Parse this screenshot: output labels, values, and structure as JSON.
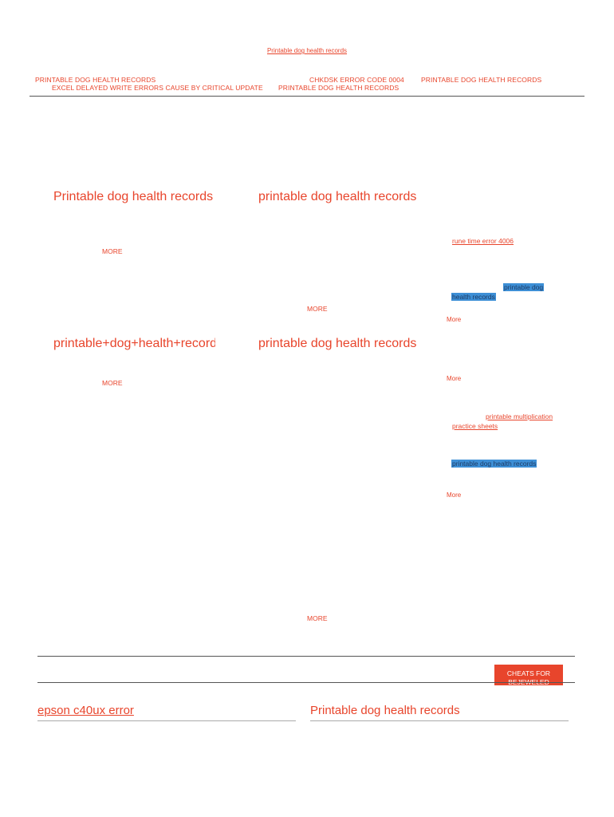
{
  "header": {
    "top_link": "Printable dog health records",
    "nav": {
      "item1": "PRINTABLE DOG HEALTH RECORDS",
      "item2": "EXCEL DELAYED WRITE ERRORS CAUSE BY CRITICAL UPDATE",
      "item3": "CHKDSK ERROR CODE 0004",
      "item4": "PRINTABLE DOG HEALTH RECORDS",
      "item5": "PRINTABLE DOG HEALTH RECORDS"
    }
  },
  "posts": [
    {
      "title": "Printable dog health records",
      "more": "MORE"
    },
    {
      "title": "printable dog health records",
      "more": "MORE"
    },
    {
      "title": "printable+dog+health+records",
      "more": "MORE"
    },
    {
      "title": "printable dog health records",
      "more": "MORE"
    }
  ],
  "sidebar": {
    "link1": "rune time error 4006",
    "hl1_line1": "printable dog",
    "hl1_line2": "health records",
    "more1": "More",
    "more2": "More",
    "link2_line1": "printable multiplication",
    "link2_line2": "practice sheets",
    "hl2": "printable dog health records",
    "more3": "More"
  },
  "cheats_button": "CHEATS FOR BEJEWELED",
  "footer": {
    "left_title": "epson c40ux error",
    "right_title": "Printable dog health records"
  },
  "colors": {
    "accent": "#e8452c",
    "highlight": "#3d8fd6"
  }
}
